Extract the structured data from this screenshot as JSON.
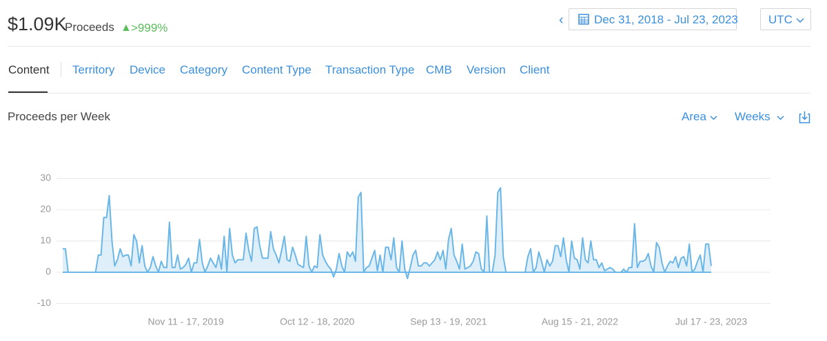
{
  "header": {
    "amount": "$1.09K",
    "label": "Proceeds",
    "change": ">999%",
    "date_range": "Dec 31, 2018 - Jul 23, 2023",
    "timezone": "UTC"
  },
  "tabs": [
    "Content",
    "Territory",
    "Device",
    "Category",
    "Content Type",
    "Transaction Type",
    "CMB",
    "Version",
    "Client"
  ],
  "controls": {
    "chart_mode": "Area",
    "period": "Weeks"
  },
  "chart_data": {
    "type": "area",
    "title": "Proceeds per Week",
    "color": "#6ab6e6",
    "grid": true,
    "ylim": [
      -10,
      30
    ],
    "yticks": [
      30,
      20,
      10,
      0,
      -10
    ],
    "categories": [
      null,
      null,
      null,
      null,
      null,
      null,
      null,
      null,
      null,
      null,
      null,
      null,
      null,
      null,
      null,
      null,
      null,
      null,
      null,
      null,
      null,
      null,
      null,
      null,
      null,
      null,
      null,
      null,
      null,
      null,
      null,
      null,
      null,
      null,
      null,
      null,
      null,
      null,
      null,
      null,
      null,
      null,
      null,
      null,
      null,
      "Nov 11 - 17, 2019",
      null,
      null,
      null,
      null,
      null,
      null,
      null,
      null,
      null,
      null,
      null,
      null,
      null,
      null,
      null,
      null,
      null,
      null,
      null,
      null,
      null,
      null,
      null,
      null,
      null,
      null,
      null,
      null,
      null,
      null,
      null,
      null,
      null,
      null,
      null,
      null,
      null,
      null,
      null,
      null,
      null,
      null,
      null,
      null,
      null,
      null,
      null,
      "Oct 12 - 18, 2020",
      null,
      null,
      null,
      null,
      null,
      null,
      null,
      null,
      null,
      null,
      null,
      null,
      null,
      null,
      null,
      null,
      null,
      null,
      null,
      null,
      null,
      null,
      null,
      null,
      null,
      null,
      null,
      null,
      null,
      null,
      null,
      null,
      null,
      null,
      null,
      null,
      null,
      null,
      null,
      null,
      null,
      null,
      null,
      null,
      null,
      null,
      null,
      "Sep 13 - 19, 2021",
      null,
      null,
      null,
      null,
      null,
      null,
      null,
      null,
      null,
      null,
      null,
      null,
      null,
      null,
      null,
      null,
      null,
      null,
      null,
      null,
      null,
      null,
      null,
      null,
      null,
      null,
      null,
      null,
      null,
      null,
      null,
      null,
      null,
      null,
      null,
      null,
      null,
      null,
      null,
      null,
      null,
      null,
      null,
      null,
      null,
      null,
      null,
      "Aug 15 - 21, 2022",
      null,
      null,
      null,
      null,
      null,
      null,
      null,
      null,
      null,
      null,
      null,
      null,
      null,
      null,
      null,
      null,
      null,
      null,
      null,
      null,
      null,
      null,
      null,
      null,
      null,
      null,
      null,
      null,
      null,
      null,
      null,
      null,
      null,
      null,
      null,
      null,
      null,
      null,
      null,
      null,
      null,
      null,
      null,
      null,
      null,
      null,
      null,
      "Jul 17 - 23, 2023"
    ],
    "values": [
      7.5,
      7.5,
      0,
      0,
      0,
      0,
      0,
      0,
      0,
      0,
      0,
      0,
      0,
      5.5,
      5.5,
      17.5,
      17.5,
      24.5,
      10,
      2,
      4,
      7.5,
      5,
      5.5,
      5.5,
      2,
      12,
      10,
      3,
      8.5,
      2,
      0,
      1.5,
      5,
      2,
      0,
      3.5,
      1.5,
      1.5,
      16,
      1.5,
      1.5,
      5.5,
      1,
      1.5,
      2.5,
      4.5,
      0,
      3,
      3,
      10.5,
      3,
      0,
      2,
      4.5,
      3,
      1.5,
      5.5,
      1,
      11.5,
      0,
      14,
      5.5,
      3,
      4,
      4,
      4,
      12.5,
      7,
      3.5,
      14,
      14.5,
      8.5,
      4.5,
      4.5,
      4.5,
      13,
      7.5,
      5.5,
      3,
      7,
      11.5,
      4,
      3.5,
      8,
      5.5,
      2.5,
      2,
      1.5,
      11.5,
      2,
      0,
      2,
      1.5,
      12,
      5.5,
      3.5,
      2,
      1,
      -1.5,
      1,
      6,
      2,
      0,
      6.5,
      5,
      6.5,
      3.5,
      24,
      25.5,
      0,
      1.5,
      2,
      4.5,
      7,
      0.5,
      5.5,
      0,
      8,
      8,
      4,
      11,
      1.5,
      0,
      10,
      1,
      -2,
      1.5,
      5.5,
      7,
      2,
      2,
      3,
      3,
      2,
      3,
      4,
      6.5,
      4,
      7,
      1,
      10.5,
      14,
      5.5,
      3.5,
      1,
      9,
      1,
      1.5,
      2,
      3.5,
      6.5,
      6,
      1,
      0,
      18,
      0,
      0,
      5.5,
      25.5,
      27,
      5,
      0,
      0,
      0,
      0,
      0,
      0,
      0,
      0,
      5,
      7.5,
      0,
      1.5,
      6.5,
      3.5,
      0,
      4,
      2,
      3.5,
      8.5,
      8.5,
      5,
      11,
      4,
      0,
      10,
      4.5,
      4,
      1,
      11,
      4,
      3,
      10,
      4,
      4,
      1.5,
      3,
      0.5,
      1,
      1.5,
      1,
      0,
      0,
      0,
      1,
      0,
      1.5,
      1.5,
      15.5,
      1.5,
      3.5,
      3.5,
      4,
      6,
      2,
      0,
      9.5,
      8,
      3,
      0,
      2,
      3.5,
      3,
      5,
      1.5,
      4.5,
      5,
      2,
      9,
      0,
      1,
      3.5,
      5.5,
      0,
      9,
      9,
      2
    ]
  }
}
